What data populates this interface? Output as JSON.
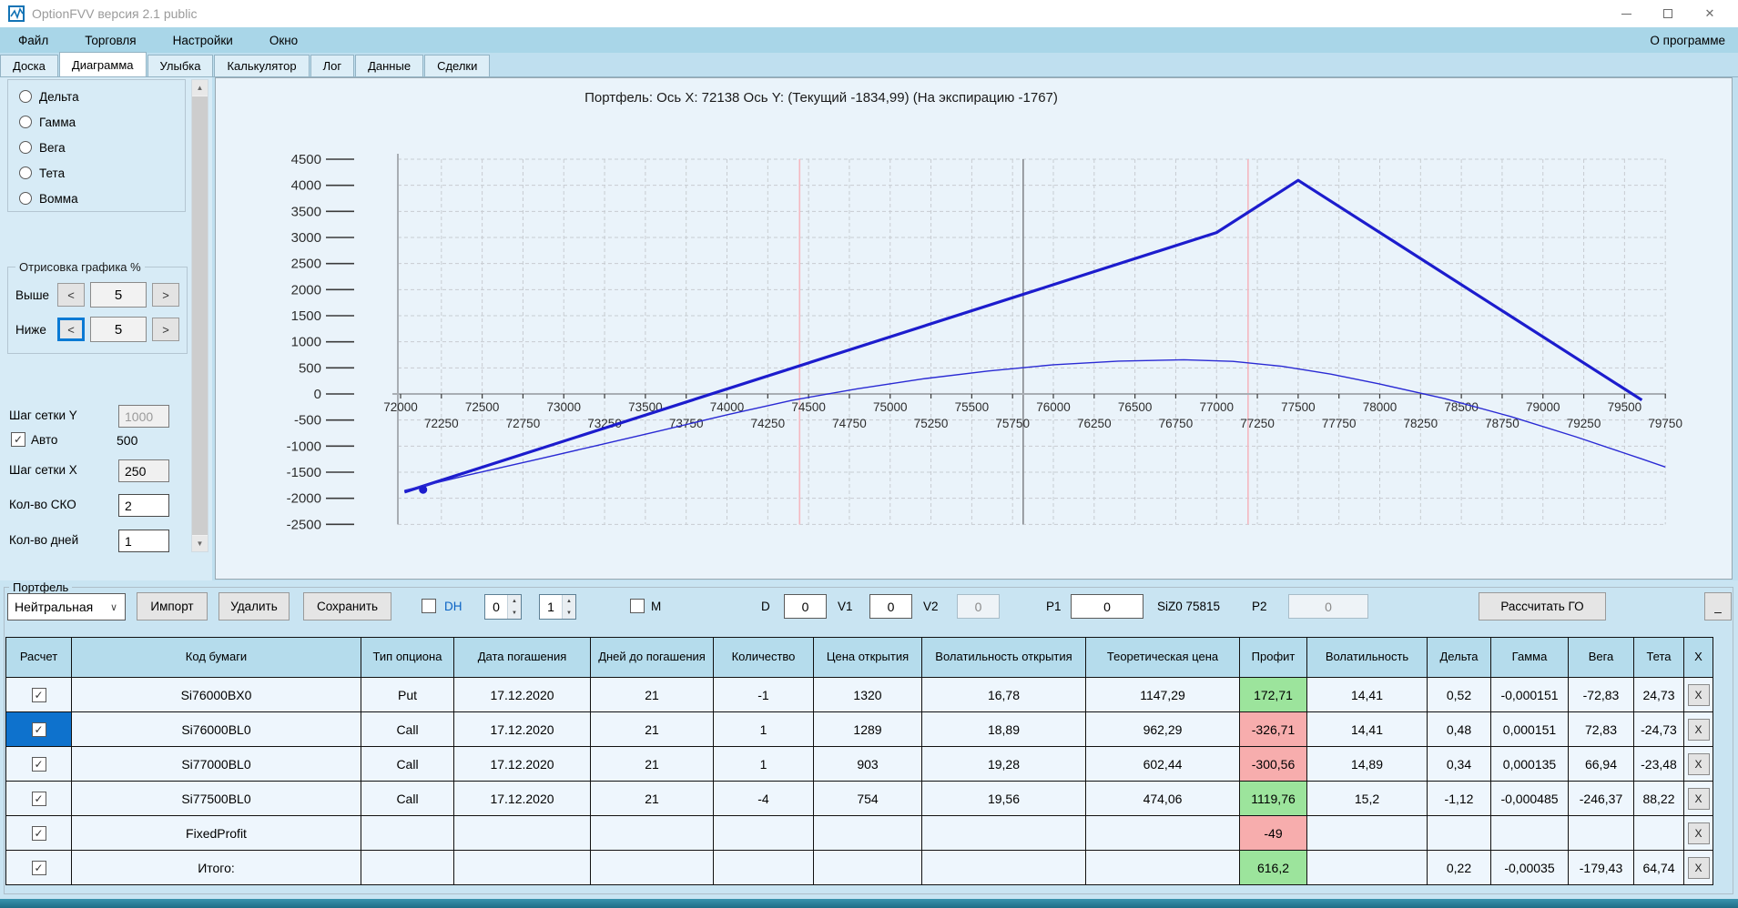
{
  "window": {
    "title": "OptionFVV версия 2.1 public"
  },
  "menu": {
    "items": [
      "Файл",
      "Торговля",
      "Настройки",
      "Окно"
    ],
    "right": "О программе"
  },
  "tabs": {
    "items": [
      "Доска",
      "Диаграмма",
      "Улыбка",
      "Калькулятор",
      "Лог",
      "Данные",
      "Сделки"
    ],
    "active": "Диаграмма"
  },
  "sidebar": {
    "greeks": [
      "Дельта",
      "Гамма",
      "Вега",
      "Тета",
      "Вомма"
    ],
    "draw_group": {
      "title": "Отрисовка графика %",
      "dec_label": "<",
      "inc_label": ">",
      "rows": [
        {
          "label": "Выше",
          "value": "5"
        },
        {
          "label": "Ниже",
          "value": "5"
        }
      ]
    },
    "grid_y_label": "Шаг сетки Y",
    "grid_y_value": "1000",
    "auto_label": "Авто",
    "auto_value": "500",
    "grid_x_label": "Шаг сетки X",
    "grid_x_value": "250",
    "sko_label": "Кол-во СКО",
    "sko_value": "2",
    "days_label": "Кол-во дней",
    "days_value": "1"
  },
  "portfolio": {
    "group_label": "Портфель",
    "strategy_value": "Нейтральная",
    "import_label": "Импорт",
    "delete_label": "Удалить",
    "save_label": "Сохранить",
    "dh_label": "DH",
    "dh_spin_a": "0",
    "dh_spin_b": "1",
    "m_label": "M",
    "d_label": "D",
    "d_value": "0",
    "v1_label": "V1",
    "v1_value": "0",
    "v2_label": "V2",
    "v2_value": "0",
    "p1_label": "P1",
    "p1_value": "0",
    "ticker": "SiZ0 75815",
    "p2_label": "P2",
    "p2_value": "0",
    "calc_label": "Рассчитать ГО",
    "collapse_label": "_",
    "row_delete_label": "X"
  },
  "table": {
    "headers": [
      "Расчет",
      "Код бумаги",
      "Тип опциона",
      "Дата погашения",
      "Дней до погашения",
      "Количество",
      "Цена открытия",
      "Волатильность открытия",
      "Теоретическая цена",
      "Профит",
      "Волатильность",
      "Дельта",
      "Гамма",
      "Вега",
      "Тета",
      "X"
    ],
    "rows": [
      {
        "checked": true,
        "selected": false,
        "profit_state": "green",
        "cells": [
          "Si76000BX0",
          "Put",
          "17.12.2020",
          "21",
          "-1",
          "1320",
          "16,78",
          "1147,29",
          "172,71",
          "14,41",
          "0,52",
          "-0,000151",
          "-72,83",
          "24,73"
        ]
      },
      {
        "checked": true,
        "selected": true,
        "profit_state": "red",
        "cells": [
          "Si76000BL0",
          "Call",
          "17.12.2020",
          "21",
          "1",
          "1289",
          "18,89",
          "962,29",
          "-326,71",
          "14,41",
          "0,48",
          "0,000151",
          "72,83",
          "-24,73"
        ]
      },
      {
        "checked": true,
        "selected": false,
        "profit_state": "red",
        "cells": [
          "Si77000BL0",
          "Call",
          "17.12.2020",
          "21",
          "1",
          "903",
          "19,28",
          "602,44",
          "-300,56",
          "14,89",
          "0,34",
          "0,000135",
          "66,94",
          "-23,48"
        ]
      },
      {
        "checked": true,
        "selected": false,
        "profit_state": "green",
        "cells": [
          "Si77500BL0",
          "Call",
          "17.12.2020",
          "21",
          "-4",
          "754",
          "19,56",
          "474,06",
          "1119,76",
          "15,2",
          "-1,12",
          "-0,000485",
          "-246,37",
          "88,22"
        ]
      },
      {
        "checked": true,
        "selected": false,
        "profit_state": "red",
        "cells": [
          "FixedProfit",
          "",
          "",
          "",
          "",
          "",
          "",
          "",
          "-49",
          "",
          "",
          "",
          "",
          ""
        ]
      },
      {
        "checked": true,
        "selected": false,
        "profit_state": "green",
        "cells": [
          "Итого:",
          "",
          "",
          "",
          "",
          "",
          "",
          "",
          "616,2",
          "",
          "0,22",
          "-0,00035",
          "-179,43",
          "64,74"
        ]
      }
    ]
  },
  "chart_data": {
    "type": "line",
    "title": "Портфель: Ось X: 72138 Ось Y:  (Текущий -1834,99)  (На экспирацию -1767)",
    "xlabel": "",
    "ylabel": "",
    "xlim": [
      71983,
      79800
    ],
    "ylim": [
      -2500,
      4500
    ],
    "x_tick_step": 250,
    "x_label_step": 500,
    "x_labels_row1_start": 72000,
    "x_labels_row2_start": 72250,
    "y_tick_step": 500,
    "grid": true,
    "legend": false,
    "series": [
      {
        "name": "На экспирацию",
        "color": "#1c1ccd",
        "width": 3.2,
        "points": [
          [
            72024,
            -1881
          ],
          [
            76000,
            2095
          ],
          [
            77000,
            3095
          ],
          [
            77500,
            4095
          ],
          [
            79606,
            -117
          ]
        ]
      },
      {
        "name": "Текущий",
        "color": "#2a2ad4",
        "width": 1.4,
        "points": [
          [
            72024,
            -1850
          ],
          [
            72400,
            -1565
          ],
          [
            72800,
            -1280
          ],
          [
            73200,
            -990
          ],
          [
            73600,
            -700
          ],
          [
            74000,
            -400
          ],
          [
            74400,
            -120
          ],
          [
            74800,
            100
          ],
          [
            75200,
            290
          ],
          [
            75600,
            440
          ],
          [
            76000,
            560
          ],
          [
            76400,
            630
          ],
          [
            76800,
            655
          ],
          [
            77100,
            625
          ],
          [
            77400,
            530
          ],
          [
            77700,
            380
          ],
          [
            78000,
            190
          ],
          [
            78400,
            -90
          ],
          [
            78800,
            -430
          ],
          [
            79200,
            -820
          ],
          [
            79600,
            -1240
          ],
          [
            79750,
            -1400
          ]
        ]
      }
    ],
    "marker": {
      "x": 72138,
      "y": -1835,
      "color": "#1c1ccd"
    },
    "vlines": [
      {
        "x": 74445,
        "color": "#f5b8c0"
      },
      {
        "x": 77193,
        "color": "#f5b8c0"
      },
      {
        "x": 75815,
        "color": "#85898d"
      }
    ]
  }
}
